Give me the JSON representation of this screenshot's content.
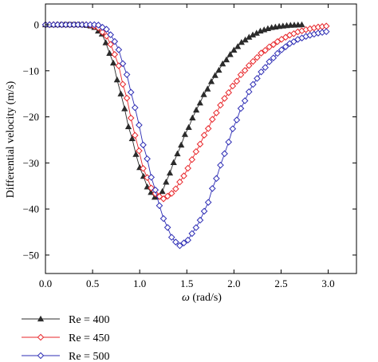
{
  "chart_data": {
    "type": "line",
    "title": "",
    "xlabel": "ω (rad/s)",
    "ylabel": "Differential velocity (m/s)",
    "xlim": [
      0,
      3.3
    ],
    "ylim": [
      -54,
      4.5
    ],
    "x_ticks": [
      0.0,
      0.5,
      1.0,
      1.5,
      2.0,
      2.5,
      3.0
    ],
    "x_tick_labels": [
      "0.0",
      "0.5",
      "1.0",
      "1.5",
      "2.0",
      "2.5",
      "3.0"
    ],
    "y_ticks": [
      0,
      -10,
      -20,
      -30,
      -40,
      -50
    ],
    "y_tick_labels": [
      "0",
      "−10",
      "−20",
      "−30",
      "−40",
      "−50"
    ],
    "grid": false,
    "legend_position": "bottom-left, below plot",
    "series": [
      {
        "name": "Re = 400",
        "color": "#2b2b2b",
        "marker": "triangle-filled",
        "x_start": 0.0,
        "x_end": 2.72,
        "n_points": 69,
        "control_points": [
          [
            0.0,
            0
          ],
          [
            0.4,
            0
          ],
          [
            0.5,
            -0.3
          ],
          [
            0.6,
            -2
          ],
          [
            0.7,
            -7
          ],
          [
            0.8,
            -15
          ],
          [
            0.9,
            -23.5
          ],
          [
            1.0,
            -31
          ],
          [
            1.1,
            -36
          ],
          [
            1.18,
            -37.8
          ],
          [
            1.25,
            -36
          ],
          [
            1.3,
            -33
          ],
          [
            1.4,
            -28
          ],
          [
            1.5,
            -23
          ],
          [
            1.6,
            -18.5
          ],
          [
            1.7,
            -14.5
          ],
          [
            1.8,
            -11
          ],
          [
            1.9,
            -8
          ],
          [
            2.0,
            -5.5
          ],
          [
            2.1,
            -3.5
          ],
          [
            2.2,
            -2.2
          ],
          [
            2.3,
            -1.2
          ],
          [
            2.4,
            -0.6
          ],
          [
            2.5,
            -0.3
          ],
          [
            2.6,
            -0.1
          ],
          [
            2.72,
            0
          ]
        ]
      },
      {
        "name": "Re = 450",
        "color": "#e8262a",
        "marker": "diamond-open",
        "x_start": 0.0,
        "x_end": 2.98,
        "n_points": 70,
        "control_points": [
          [
            0.0,
            0
          ],
          [
            0.45,
            0
          ],
          [
            0.55,
            -0.5
          ],
          [
            0.65,
            -2.5
          ],
          [
            0.75,
            -7
          ],
          [
            0.85,
            -15
          ],
          [
            0.95,
            -24
          ],
          [
            1.05,
            -32
          ],
          [
            1.15,
            -36.5
          ],
          [
            1.25,
            -37.8
          ],
          [
            1.35,
            -36.5
          ],
          [
            1.45,
            -33.5
          ],
          [
            1.5,
            -31.5
          ],
          [
            1.6,
            -27.5
          ],
          [
            1.7,
            -23.5
          ],
          [
            1.8,
            -19.5
          ],
          [
            1.9,
            -16
          ],
          [
            2.0,
            -13
          ],
          [
            2.1,
            -10.2
          ],
          [
            2.2,
            -8
          ],
          [
            2.3,
            -6
          ],
          [
            2.4,
            -4.5
          ],
          [
            2.5,
            -3.2
          ],
          [
            2.6,
            -2.2
          ],
          [
            2.7,
            -1.4
          ],
          [
            2.8,
            -0.9
          ],
          [
            2.9,
            -0.5
          ],
          [
            2.98,
            -0.3
          ]
        ]
      },
      {
        "name": "Re = 500",
        "color": "#2d2db4",
        "marker": "diamond-open",
        "x_start": 0.0,
        "x_end": 2.98,
        "n_points": 70,
        "control_points": [
          [
            0.0,
            0
          ],
          [
            0.55,
            0
          ],
          [
            0.65,
            -1
          ],
          [
            0.75,
            -4
          ],
          [
            0.85,
            -10
          ],
          [
            0.95,
            -18
          ],
          [
            1.05,
            -27
          ],
          [
            1.15,
            -35
          ],
          [
            1.25,
            -42
          ],
          [
            1.35,
            -46.5
          ],
          [
            1.42,
            -48
          ],
          [
            1.5,
            -47
          ],
          [
            1.6,
            -44
          ],
          [
            1.7,
            -40
          ],
          [
            1.8,
            -34
          ],
          [
            1.9,
            -28
          ],
          [
            2.0,
            -22
          ],
          [
            2.1,
            -17
          ],
          [
            2.2,
            -13
          ],
          [
            2.3,
            -10
          ],
          [
            2.4,
            -7.5
          ],
          [
            2.5,
            -5.5
          ],
          [
            2.6,
            -4
          ],
          [
            2.7,
            -3
          ],
          [
            2.8,
            -2.3
          ],
          [
            2.9,
            -1.8
          ],
          [
            2.98,
            -1.5
          ]
        ]
      }
    ]
  }
}
